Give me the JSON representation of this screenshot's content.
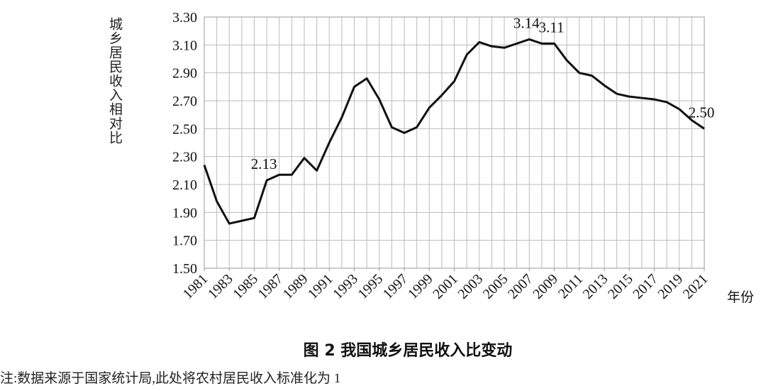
{
  "chart_data": {
    "type": "line",
    "title": "图 2  我国城乡居民收入比变动",
    "note": "注:数据来源于国家统计局,此处将农村居民收入标准化为 1",
    "y_label": "城乡居民收入相对比",
    "x_label": "年份",
    "x": [
      1981,
      1982,
      1983,
      1984,
      1985,
      1986,
      1987,
      1988,
      1989,
      1990,
      1991,
      1992,
      1993,
      1994,
      1995,
      1996,
      1997,
      1998,
      1999,
      2000,
      2001,
      2002,
      2003,
      2004,
      2005,
      2006,
      2007,
      2008,
      2009,
      2010,
      2011,
      2012,
      2013,
      2014,
      2015,
      2016,
      2017,
      2018,
      2019,
      2020,
      2021
    ],
    "series": [
      {
        "name": "城乡居民收入比",
        "color": "#111111",
        "values": [
          2.24,
          1.98,
          1.82,
          1.84,
          1.86,
          2.13,
          2.17,
          2.17,
          2.29,
          2.2,
          2.4,
          2.58,
          2.8,
          2.86,
          2.71,
          2.51,
          2.47,
          2.51,
          2.65,
          2.74,
          2.84,
          3.03,
          3.12,
          3.09,
          3.08,
          3.11,
          3.14,
          3.11,
          3.11,
          2.99,
          2.9,
          2.88,
          2.81,
          2.75,
          2.73,
          2.72,
          2.71,
          2.69,
          2.64,
          2.56,
          2.5
        ],
        "value_labels": [
          null,
          null,
          null,
          null,
          null,
          "2.13",
          null,
          null,
          null,
          null,
          null,
          null,
          null,
          null,
          null,
          null,
          null,
          null,
          null,
          null,
          null,
          null,
          null,
          null,
          null,
          null,
          "3.14",
          null,
          "3.11",
          null,
          null,
          null,
          null,
          null,
          null,
          null,
          null,
          null,
          null,
          null,
          "2.50"
        ]
      }
    ],
    "xlim": [
      1981,
      2021
    ],
    "xticks": [
      1981,
      1983,
      1985,
      1987,
      1989,
      1991,
      1993,
      1995,
      1997,
      1999,
      2001,
      2003,
      2005,
      2007,
      2009,
      2011,
      2013,
      2015,
      2017,
      2019,
      2021
    ],
    "ylim": [
      1.5,
      3.3
    ],
    "yticks": [
      {
        "value": 1.5,
        "label": "1.50"
      },
      {
        "value": 1.7,
        "label": "1.70"
      },
      {
        "value": 1.9,
        "label": "1.90"
      },
      {
        "value": 2.1,
        "label": "2.10"
      },
      {
        "value": 2.3,
        "label": "2.30"
      },
      {
        "value": 2.5,
        "label": "2.50"
      },
      {
        "value": 2.7,
        "label": "2.70"
      },
      {
        "value": 2.9,
        "label": "2.90"
      },
      {
        "value": 3.1,
        "label": "3.10"
      },
      {
        "value": 3.3,
        "label": "3.30"
      }
    ],
    "grid": true
  }
}
